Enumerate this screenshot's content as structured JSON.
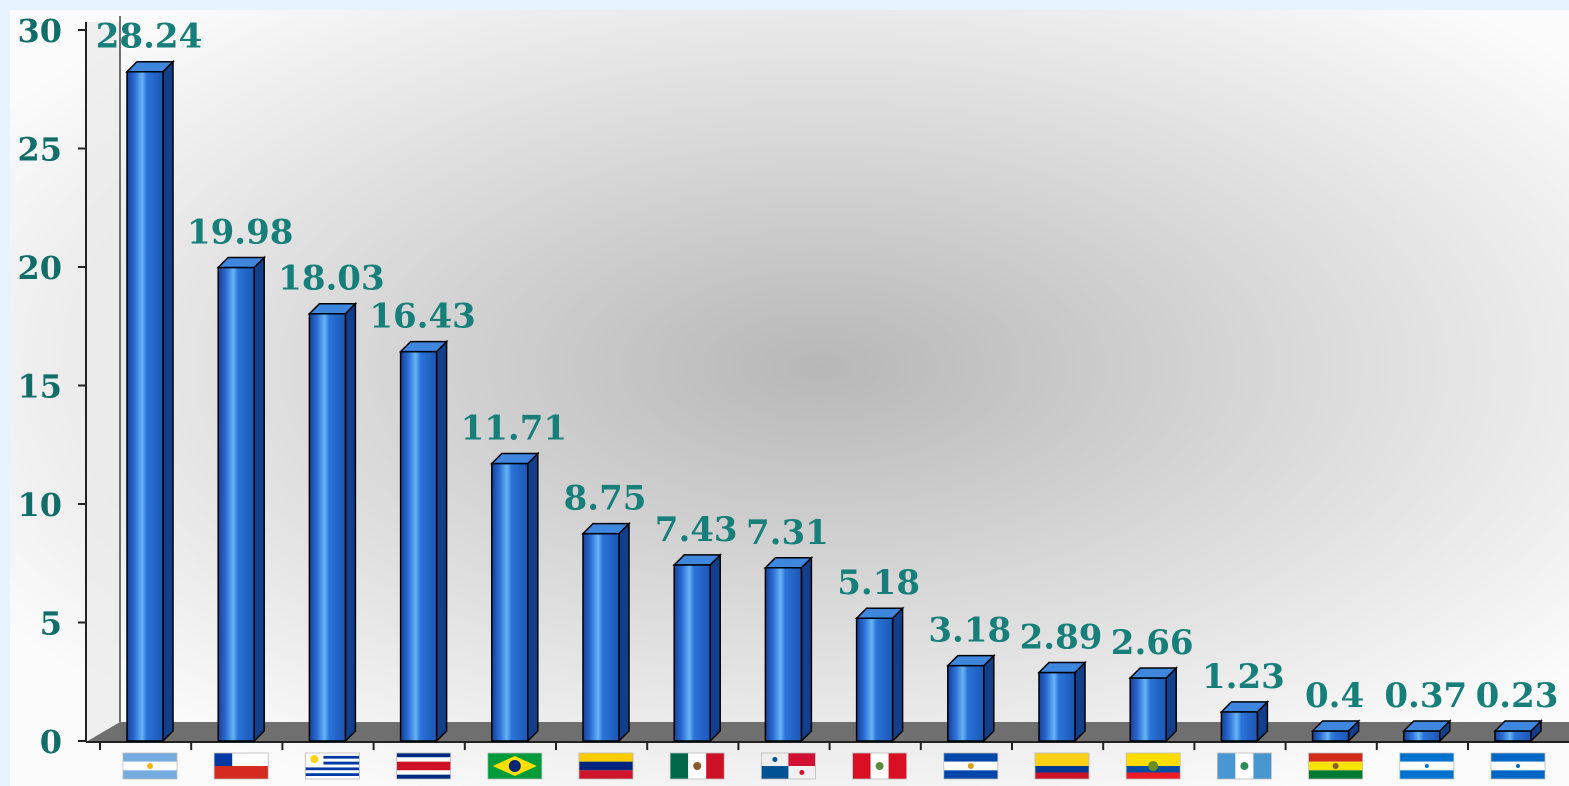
{
  "chart_data": {
    "type": "bar",
    "categories": [
      "Argentina",
      "Chile",
      "Uruguay",
      "Costa Rica",
      "Brazil",
      "Venezuela",
      "Mexico",
      "Panama",
      "Peru",
      "El Salvador",
      "Colombia",
      "Ecuador",
      "Guatemala",
      "Bolivia",
      "Honduras",
      "Nicaragua"
    ],
    "values": [
      28.24,
      19.98,
      18.03,
      16.43,
      11.71,
      8.75,
      7.43,
      7.31,
      5.18,
      3.18,
      2.89,
      2.66,
      1.23,
      0.4,
      0.37,
      0.23
    ],
    "value_labels": [
      "28.24",
      "19.98",
      "18.03",
      "16.43",
      "11.71",
      "8.75",
      "7.43",
      "7.31",
      "5.18",
      "3.18",
      "2.89",
      "2.66",
      "1.23",
      "0.4",
      "0.37",
      "0.23"
    ],
    "y_ticks": [
      "0",
      "5",
      "10",
      "15",
      "20",
      "25",
      "30"
    ],
    "ylim": [
      0,
      30
    ],
    "title": "",
    "xlabel": "",
    "ylabel": "",
    "x_axis_labels": "country flags",
    "grid": false,
    "legend": "none",
    "colors": {
      "bar_front": "#1f63c8",
      "bar_light": "#5aa8ee",
      "bar_top": "#3f86de",
      "bar_side": "#123f8c",
      "label": "#177f7a",
      "tick_label": "#0f6e6a",
      "floor": "#6f6f6f"
    }
  }
}
